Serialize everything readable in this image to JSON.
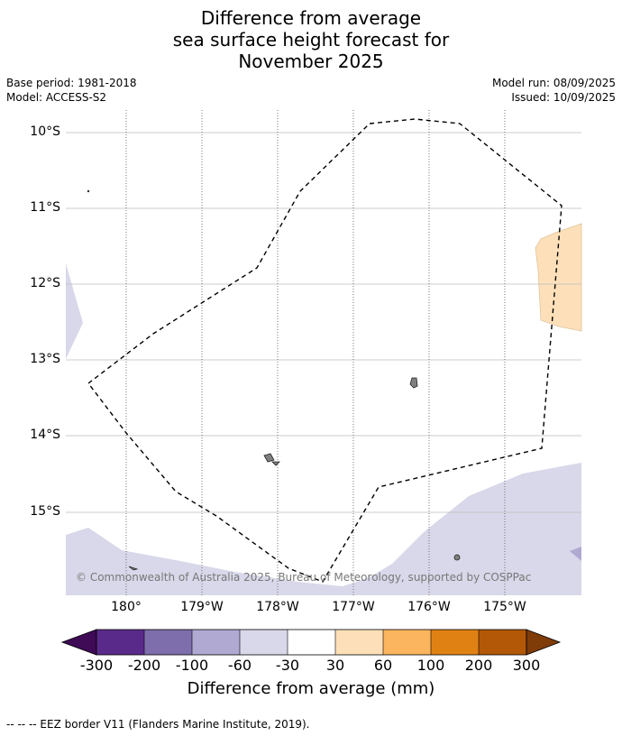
{
  "title": {
    "line1": "Difference from average",
    "line2": "sea surface height forecast for",
    "line3": "November 2025"
  },
  "meta": {
    "base_period": "Base period: 1981-2018",
    "model": "Model: ACCESS-S2",
    "model_run": "Model run: 08/09/2025",
    "issued": "Issued: 10/09/2025"
  },
  "map": {
    "lat_labels": [
      "10°S",
      "11°S",
      "12°S",
      "13°S",
      "14°S",
      "15°S"
    ],
    "lon_labels": [
      "180°",
      "179°W",
      "178°W",
      "177°W",
      "176°W",
      "175°W"
    ],
    "copyright": "© Commonwealth of Australia 2025, Bureau of Meteorology, supported by COSPPac",
    "colors": {
      "ocean": "#ffffff",
      "neg_light": "#d8d8ea",
      "neg_mid": "#b0a9d1",
      "pos_light": "#fde0b9",
      "land": "#808080",
      "eez": "#000000"
    }
  },
  "colorbar": {
    "ticks": [
      "-300",
      "-200",
      "-100",
      "-60",
      "-30",
      "30",
      "60",
      "100",
      "200",
      "300"
    ],
    "colors": [
      "#3f0a56",
      "#5a2a8a",
      "#7e6eab",
      "#b0a9d1",
      "#d8d8ea",
      "#ffffff",
      "#fde0b9",
      "#fbb55f",
      "#e08213",
      "#b35807",
      "#7f3b08"
    ],
    "label": "Difference from average (mm)"
  },
  "footer": "--  --  -- EEZ border V11 (Flanders Marine Institute, 2019)."
}
